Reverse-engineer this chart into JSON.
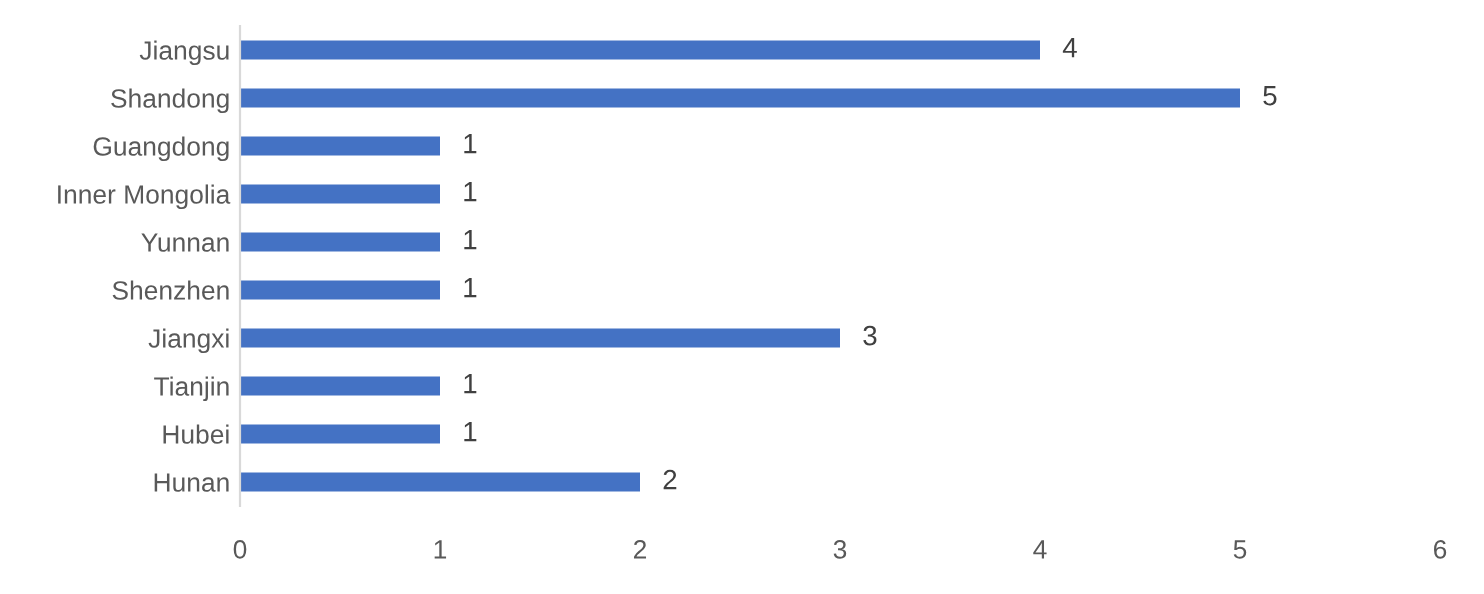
{
  "chart_data": {
    "type": "bar",
    "orientation": "horizontal",
    "categories": [
      "Jiangsu",
      "Shandong",
      "Guangdong",
      "Inner Mongolia",
      "Yunnan",
      "Shenzhen",
      "Jiangxi",
      "Tianjin",
      "Hubei",
      "Hunan"
    ],
    "values": [
      4,
      5,
      1,
      1,
      1,
      1,
      3,
      1,
      1,
      2
    ],
    "color": "#4472c4",
    "xlim": [
      0,
      6
    ],
    "xticks": [
      0,
      1,
      2,
      3,
      4,
      5,
      6
    ],
    "grid": false,
    "data_labels": true
  }
}
